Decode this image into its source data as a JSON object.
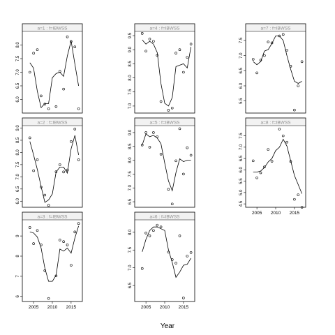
{
  "page": {
    "xlabel": "Year"
  },
  "chart_data": [
    {
      "type": "line",
      "panel": 1,
      "strip": "a=1 : f=IBWSS",
      "xlim": [
        2002,
        2018
      ],
      "ylim": [
        5.5,
        8.5
      ],
      "yticks": [
        6.0,
        6.5,
        7.0,
        7.5,
        8.0
      ],
      "xticks": [],
      "points_x": [
        2004,
        2005,
        2006,
        2007,
        2008,
        2009,
        2011,
        2012,
        2013,
        2014,
        2015,
        2016,
        2017
      ],
      "points_y": [
        7.0,
        7.7,
        7.83,
        6.13,
        5.83,
        5.66,
        5.74,
        7.03,
        6.38,
        8.3,
        8.13,
        7.93,
        5.66
      ],
      "fit_x": [
        2004,
        2005,
        2006,
        2007,
        2008,
        2009,
        2010,
        2011,
        2012,
        2013,
        2014,
        2015,
        2016,
        2017
      ],
      "fit_y": [
        7.35,
        7.15,
        6.3,
        5.7,
        5.85,
        5.85,
        6.8,
        6.95,
        7.0,
        6.85,
        7.6,
        8.15,
        7.3,
        6.5
      ]
    },
    {
      "type": "line",
      "panel": 2,
      "strip": "a=2 : f=IBWSS",
      "xlim": [
        2002,
        2018
      ],
      "ylim": [
        5.75,
        9.1
      ],
      "yticks": [
        6.0,
        6.5,
        7.0,
        7.5,
        8.0,
        8.5,
        9.0
      ],
      "xticks": [],
      "points_x": [
        2004,
        2005,
        2006,
        2007,
        2008,
        2009,
        2011,
        2012,
        2013,
        2014,
        2015,
        2016,
        2017
      ],
      "points_y": [
        8.6,
        7.25,
        7.7,
        6.58,
        6.25,
        5.83,
        7.21,
        7.5,
        7.2,
        7.28,
        8.45,
        8.96,
        7.7
      ],
      "fit_x": [
        2004,
        2005,
        2006,
        2007,
        2008,
        2009,
        2010,
        2011,
        2012,
        2013,
        2014,
        2015,
        2016,
        2017
      ],
      "fit_y": [
        8.45,
        7.9,
        7.3,
        6.6,
        5.95,
        6.05,
        6.3,
        7.2,
        7.4,
        7.4,
        7.15,
        8.15,
        8.7,
        7.9
      ]
    },
    {
      "type": "line",
      "panel": 3,
      "strip": "a=3 : f=IBWSS",
      "xlim": [
        2002,
        2018
      ],
      "ylim": [
        5.75,
        9.8
      ],
      "yticks": [
        6,
        7,
        8,
        9
      ],
      "xticks": [
        2005,
        2010,
        2015
      ],
      "points_x": [
        2004,
        2005,
        2006,
        2007,
        2008,
        2009,
        2011,
        2012,
        2013,
        2014,
        2015,
        2016,
        2017
      ],
      "points_y": [
        9.42,
        8.62,
        9.27,
        8.56,
        7.28,
        5.9,
        7.02,
        8.8,
        8.72,
        8.56,
        7.55,
        9.2,
        9.62
      ],
      "fit_x": [
        2004,
        2005,
        2006,
        2007,
        2008,
        2009,
        2010,
        2011,
        2012,
        2013,
        2014,
        2015,
        2016,
        2017
      ],
      "fit_y": [
        9.2,
        9.15,
        8.95,
        8.4,
        7.4,
        6.75,
        6.75,
        7.05,
        8.35,
        8.25,
        8.4,
        8.15,
        8.9,
        9.5
      ]
    },
    {
      "type": "line",
      "panel": 4,
      "strip": "a=4 : f=IBWSS",
      "xlim": [
        2002,
        2018
      ],
      "ylim": [
        6.75,
        9.65
      ],
      "yticks": [
        7.0,
        7.5,
        8.0,
        8.5,
        9.0,
        9.5
      ],
      "xticks": [],
      "points_x": [
        2004,
        2005,
        2006,
        2007,
        2008,
        2009,
        2011,
        2012,
        2013,
        2014,
        2015,
        2016,
        2017
      ],
      "points_y": [
        9.58,
        8.95,
        9.38,
        9.3,
        8.8,
        7.16,
        6.85,
        6.93,
        8.88,
        9.0,
        8.2,
        8.73,
        9.2
      ],
      "fit_x": [
        2004,
        2005,
        2006,
        2007,
        2008,
        2009,
        2010,
        2011,
        2012,
        2013,
        2014,
        2015,
        2016,
        2017
      ],
      "fit_y": [
        9.35,
        9.2,
        9.3,
        9.2,
        8.9,
        7.8,
        7.1,
        7.0,
        7.3,
        8.4,
        8.45,
        8.5,
        8.35,
        9.1
      ]
    },
    {
      "type": "line",
      "panel": 5,
      "strip": "a=5 : f=IBWSS",
      "xlim": [
        2002,
        2018
      ],
      "ylim": [
        6.3,
        9.25
      ],
      "yticks": [
        6.5,
        7.0,
        7.5,
        8.0,
        8.5,
        9.0
      ],
      "xticks": [],
      "points_x": [
        2004,
        2005,
        2006,
        2007,
        2008,
        2009,
        2011,
        2012,
        2013,
        2014,
        2015,
        2016,
        2017
      ],
      "points_y": [
        8.55,
        9.0,
        8.47,
        9.0,
        8.85,
        8.22,
        6.95,
        6.42,
        7.98,
        9.14,
        7.5,
        8.45,
        8.18
      ],
      "fit_x": [
        2004,
        2005,
        2006,
        2007,
        2008,
        2009,
        2010,
        2011,
        2012,
        2013,
        2014,
        2015,
        2016,
        2017
      ],
      "fit_y": [
        8.55,
        8.95,
        8.85,
        8.9,
        8.8,
        8.6,
        7.9,
        7.25,
        6.9,
        7.55,
        8.05,
        7.95,
        8.0,
        8.0
      ]
    },
    {
      "type": "line",
      "panel": 6,
      "strip": "a=6 : f=IBWSS",
      "xlim": [
        2002,
        2018
      ],
      "ylim": [
        6.05,
        8.35
      ],
      "yticks": [
        6.5,
        7.0,
        7.5,
        8.0
      ],
      "xticks": [
        2005,
        2010,
        2015
      ],
      "points_x": [
        2004,
        2005,
        2006,
        2007,
        2008,
        2009,
        2011,
        2012,
        2013,
        2014,
        2015,
        2016,
        2017
      ],
      "points_y": [
        6.98,
        7.98,
        7.9,
        8.05,
        8.2,
        8.15,
        7.44,
        7.23,
        7.13,
        7.9,
        6.15,
        7.33,
        7.43
      ],
      "fit_x": [
        2004,
        2005,
        2006,
        2007,
        2008,
        2009,
        2010,
        2011,
        2012,
        2013,
        2014,
        2015,
        2016,
        2017
      ],
      "fit_y": [
        7.45,
        7.8,
        8.05,
        8.15,
        8.15,
        8.1,
        8.05,
        7.5,
        7.15,
        6.73,
        6.88,
        7.07,
        7.1,
        7.27
      ]
    },
    {
      "type": "line",
      "panel": 7,
      "strip": "a=7 : f=IBWSS",
      "xlim": [
        2002,
        2018
      ],
      "ylim": [
        5.1,
        7.8
      ],
      "yticks": [
        5.5,
        6.0,
        6.5,
        7.0,
        7.5
      ],
      "xticks": [],
      "points_x": [
        2004,
        2005,
        2006,
        2007,
        2008,
        2009,
        2011,
        2012,
        2013,
        2014,
        2015,
        2016,
        2017
      ],
      "points_y": [
        6.88,
        6.43,
        6.85,
        7.0,
        7.45,
        7.42,
        7.65,
        7.7,
        7.18,
        6.65,
        5.2,
        6.0,
        6.8
      ],
      "fit_x": [
        2004,
        2005,
        2006,
        2007,
        2008,
        2009,
        2010,
        2011,
        2012,
        2013,
        2014,
        2015,
        2016,
        2017
      ],
      "fit_y": [
        6.8,
        6.7,
        6.8,
        7.15,
        7.2,
        7.4,
        7.65,
        7.65,
        7.5,
        7.0,
        6.55,
        6.15,
        6.08,
        6.15
      ]
    },
    {
      "type": "line",
      "panel": 8,
      "strip": "a=8 : f=IBWSS",
      "xlim": [
        2002,
        2018
      ],
      "ylim": [
        4.35,
        7.95
      ],
      "yticks": [
        4.5,
        5.0,
        5.5,
        6.0,
        6.5,
        7.0,
        7.5
      ],
      "xticks": [
        2005,
        2010,
        2015
      ],
      "points_x": [
        2004,
        2005,
        2006,
        2007,
        2008,
        2009,
        2011,
        2012,
        2013,
        2014,
        2015,
        2016,
        2017
      ],
      "points_y": [
        6.4,
        5.65,
        5.87,
        6.13,
        6.9,
        6.38,
        7.8,
        7.5,
        7.22,
        6.37,
        4.7,
        4.9,
        4.35
      ],
      "fit_x": [
        2004,
        2005,
        2006,
        2007,
        2008,
        2009,
        2010,
        2011,
        2012,
        2013,
        2014,
        2015,
        2016,
        2017
      ],
      "fit_y": [
        5.9,
        5.9,
        5.95,
        6.1,
        6.35,
        6.5,
        6.85,
        7.0,
        7.35,
        7.05,
        6.4,
        5.75,
        5.35,
        4.95
      ]
    }
  ]
}
